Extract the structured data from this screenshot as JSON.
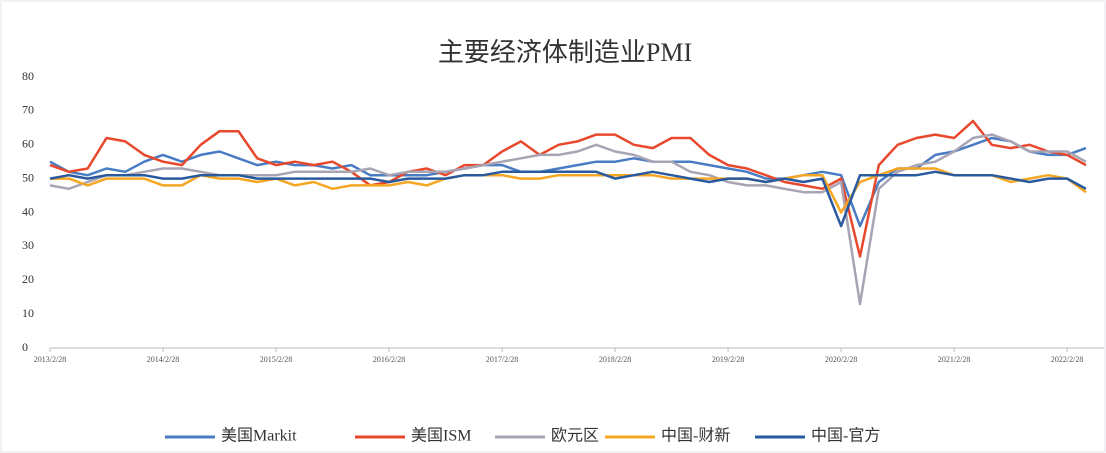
{
  "chart_data": {
    "type": "line",
    "title": "主要经济体制造业PMI",
    "categories": [
      "2013/2/28",
      null,
      null,
      null,
      null,
      null,
      "2014/2/28",
      null,
      null,
      null,
      null,
      null,
      "2015/2/28",
      null,
      null,
      null,
      null,
      null,
      "2016/2/28",
      null,
      null,
      null,
      null,
      null,
      "2017/2/28",
      null,
      null,
      null,
      null,
      null,
      "2018/2/28",
      null,
      null,
      null,
      null,
      null,
      "2019/2/28",
      null,
      null,
      null,
      null,
      null,
      "2020/2/28",
      null,
      null,
      null,
      null,
      null,
      "2021/2/28",
      null,
      null,
      null,
      null,
      null,
      "2022/2/28",
      null
    ],
    "ylim": [
      0,
      80
    ],
    "yticks": [
      0,
      10,
      20,
      30,
      40,
      50,
      60,
      70,
      80
    ],
    "legend": "bottom",
    "series": [
      {
        "name": "美国Markit",
        "color": "#4a7cc4",
        "values": [
          55,
          52,
          51,
          53,
          52,
          55,
          57,
          55,
          57,
          58,
          56,
          54,
          55,
          54,
          54,
          53,
          54,
          51,
          51,
          51,
          51,
          52,
          53,
          54,
          54,
          52,
          52,
          53,
          54,
          55,
          55,
          56,
          55,
          55,
          55,
          54,
          53,
          52,
          50,
          50,
          51,
          52,
          51,
          36,
          49,
          53,
          53,
          57,
          58,
          60,
          62,
          61,
          58,
          57,
          57,
          59
        ]
      },
      {
        "name": "美国ISM",
        "color": "#e8482c",
        "values": [
          54,
          52,
          53,
          62,
          61,
          57,
          55,
          54,
          60,
          64,
          64,
          56,
          54,
          55,
          54,
          55,
          52,
          48,
          49,
          52,
          53,
          51,
          54,
          54,
          58,
          61,
          57,
          60,
          61,
          63,
          63,
          60,
          59,
          62,
          62,
          57,
          54,
          53,
          51,
          49,
          48,
          47,
          50,
          27,
          54,
          60,
          62,
          63,
          62,
          67,
          60,
          59,
          60,
          58,
          57,
          54
        ]
      },
      {
        "name": "欧元区",
        "color": "#a8a4b4",
        "values": [
          48,
          47,
          49,
          51,
          51,
          52,
          53,
          53,
          52,
          51,
          51,
          51,
          51,
          52,
          52,
          52,
          52,
          53,
          51,
          52,
          52,
          52,
          53,
          54,
          55,
          56,
          57,
          57,
          58,
          60,
          58,
          57,
          55,
          55,
          52,
          51,
          49,
          48,
          48,
          47,
          46,
          46,
          49,
          13,
          47,
          52,
          54,
          55,
          58,
          62,
          63,
          61,
          58,
          58,
          58,
          55
        ]
      },
      {
        "name": "中国-财新",
        "color": "#f5a623",
        "values": [
          50,
          50,
          48,
          50,
          50,
          50,
          48,
          48,
          51,
          50,
          50,
          49,
          50,
          48,
          49,
          47,
          48,
          48,
          48,
          49,
          48,
          50,
          51,
          51,
          51,
          50,
          50,
          51,
          51,
          51,
          51,
          51,
          51,
          50,
          50,
          50,
          50,
          50,
          49,
          50,
          51,
          51,
          40,
          49,
          51,
          53,
          53,
          53,
          51,
          51,
          51,
          49,
          50,
          51,
          50,
          46
        ]
      },
      {
        "name": "中国-官方",
        "color": "#2a5a9e",
        "values": [
          50,
          51,
          50,
          51,
          51,
          51,
          50,
          50,
          51,
          51,
          51,
          50,
          50,
          50,
          50,
          50,
          50,
          50,
          49,
          50,
          50,
          50,
          51,
          51,
          52,
          52,
          52,
          52,
          52,
          52,
          50,
          51,
          52,
          51,
          50,
          49,
          50,
          50,
          49,
          50,
          49,
          50,
          36,
          51,
          51,
          51,
          51,
          52,
          51,
          51,
          51,
          50,
          49,
          50,
          50,
          47
        ]
      }
    ]
  }
}
